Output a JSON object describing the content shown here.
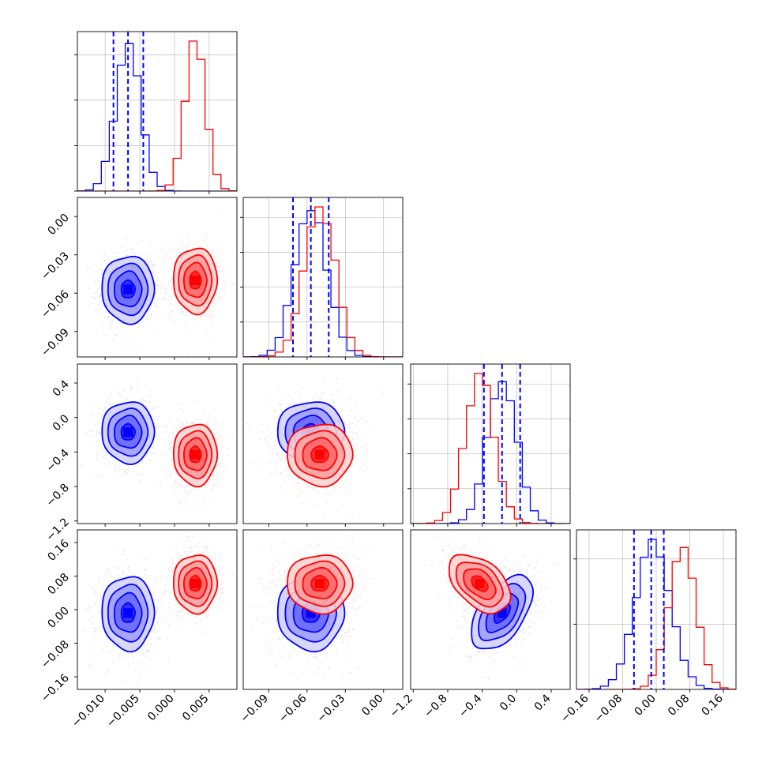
{
  "chart_data": {
    "type": "corner",
    "colors": {
      "blue": "#0000ff",
      "red": "#ff0000",
      "grid": "#b0b0b0"
    },
    "series": [
      {
        "color": "#0000ff",
        "mean": [
          -0.0067,
          -0.057,
          -0.17,
          -0.008
        ],
        "std": [
          0.0018,
          0.0125,
          0.17,
          0.042
        ],
        "corr_2_3": 0.55
      },
      {
        "color": "#ff0000",
        "mean": [
          0.003,
          -0.05,
          -0.43,
          0.062
        ],
        "std": [
          0.0015,
          0.0122,
          0.17,
          0.033
        ],
        "corr_2_3": -0.45
      }
    ],
    "quantiles": {
      "color": "#0000ff",
      "values": [
        [
          -0.0088,
          -0.0067,
          -0.0045
        ],
        [
          -0.071,
          -0.057,
          -0.043
        ],
        [
          -0.38,
          -0.17,
          0.04
        ],
        [
          -0.053,
          -0.012,
          0.018
        ]
      ]
    },
    "axes": [
      {
        "range": [
          -0.014,
          0.009
        ],
        "ticks": [
          -0.01,
          -0.005,
          0.0,
          0.005
        ],
        "tick_labels": [
          "−0.010",
          "−0.005",
          "0.000",
          "0.005"
        ]
      },
      {
        "range": [
          -0.11,
          0.015
        ],
        "ticks": [
          -0.09,
          -0.06,
          -0.03,
          0.0
        ],
        "tick_labels": [
          "−0.09",
          "−0.06",
          "−0.03",
          "0.00"
        ]
      },
      {
        "range": [
          -1.23,
          0.62
        ],
        "ticks": [
          -1.2,
          -0.8,
          -0.4,
          0.0,
          0.4
        ],
        "tick_labels": [
          "−1.2",
          "−0.8",
          "−0.4",
          "0.0",
          "0.4"
        ]
      },
      {
        "range": [
          -0.19,
          0.19
        ],
        "ticks": [
          -0.16,
          -0.08,
          0.0,
          0.08,
          0.16
        ],
        "tick_labels": [
          "−0.16",
          "−0.08",
          "0.00",
          "0.08",
          "0.16"
        ]
      }
    ],
    "diag_grid_ticks": [
      3,
      4,
      4,
      2
    ],
    "grid": true,
    "legend": false
  }
}
